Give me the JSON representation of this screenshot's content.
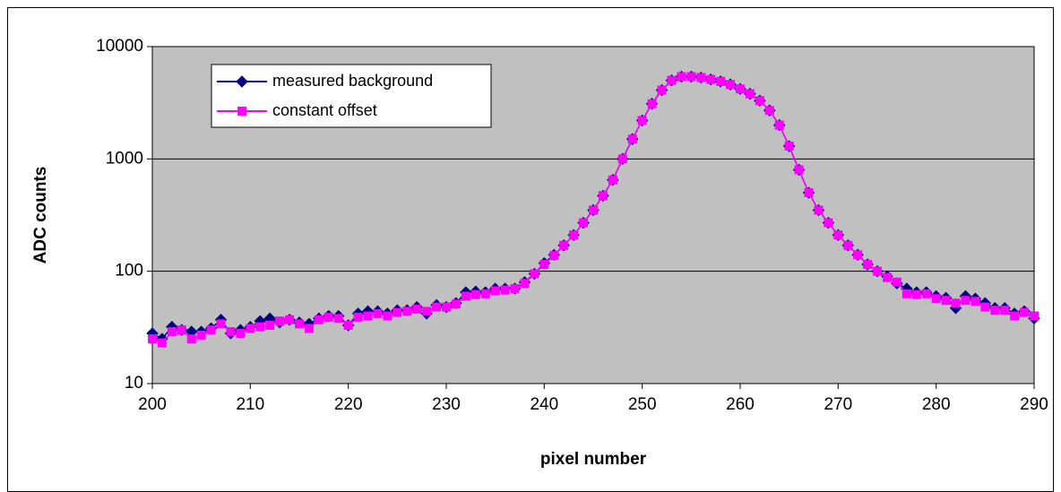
{
  "chart_data": {
    "type": "line",
    "x_label": "pixel number",
    "y_label": "ADC counts",
    "x": [
      200,
      201,
      202,
      203,
      204,
      205,
      206,
      207,
      208,
      209,
      210,
      211,
      212,
      213,
      214,
      215,
      216,
      217,
      218,
      219,
      220,
      221,
      222,
      223,
      224,
      225,
      226,
      227,
      228,
      229,
      230,
      231,
      232,
      233,
      234,
      235,
      236,
      237,
      238,
      239,
      240,
      241,
      242,
      243,
      244,
      245,
      246,
      247,
      248,
      249,
      250,
      251,
      252,
      253,
      254,
      255,
      256,
      257,
      258,
      259,
      260,
      261,
      262,
      263,
      264,
      265,
      266,
      267,
      268,
      269,
      270,
      271,
      272,
      273,
      274,
      275,
      276,
      277,
      278,
      279,
      280,
      281,
      282,
      283,
      284,
      285,
      286,
      287,
      288,
      289,
      290
    ],
    "series": [
      {
        "name": "measured background",
        "color": "#000080",
        "marker": "diamond",
        "values": [
          28,
          25,
          32,
          30,
          29,
          29,
          31,
          37,
          28,
          30,
          32,
          36,
          38,
          35,
          37,
          35,
          34,
          38,
          40,
          40,
          33,
          42,
          44,
          44,
          42,
          45,
          45,
          48,
          42,
          50,
          48,
          52,
          65,
          66,
          65,
          70,
          70,
          70,
          80,
          95,
          118,
          140,
          170,
          210,
          270,
          350,
          470,
          650,
          1000,
          1500,
          2200,
          3100,
          4100,
          5000,
          5400,
          5400,
          5300,
          5100,
          4900,
          4600,
          4200,
          3800,
          3300,
          2700,
          2000,
          1300,
          800,
          500,
          350,
          270,
          210,
          170,
          140,
          115,
          100,
          90,
          78,
          70,
          65,
          65,
          60,
          58,
          47,
          60,
          57,
          52,
          47,
          47,
          42,
          44,
          38
        ]
      },
      {
        "name": "constant offset",
        "color": "#ff00ff",
        "marker": "square",
        "values": [
          25,
          23,
          29,
          30,
          25,
          27,
          30,
          34,
          29,
          28,
          31,
          32,
          33,
          36,
          37,
          34,
          31,
          37,
          39,
          38,
          33,
          39,
          40,
          42,
          40,
          43,
          44,
          46,
          44,
          48,
          48,
          51,
          60,
          62,
          63,
          67,
          68,
          70,
          78,
          95,
          115,
          138,
          170,
          210,
          270,
          350,
          470,
          650,
          1000,
          1500,
          2200,
          3100,
          4100,
          5000,
          5400,
          5400,
          5300,
          5100,
          4900,
          4600,
          4200,
          3800,
          3300,
          2700,
          2000,
          1300,
          800,
          500,
          350,
          270,
          210,
          170,
          140,
          115,
          100,
          88,
          80,
          63,
          62,
          63,
          57,
          55,
          52,
          55,
          54,
          48,
          45,
          45,
          40,
          43,
          40
        ]
      }
    ],
    "xlim": [
      200,
      290
    ],
    "xticks": [
      200,
      210,
      220,
      230,
      240,
      250,
      260,
      270,
      280,
      290
    ],
    "ylim": [
      10,
      10000
    ],
    "yticks": [
      10,
      100,
      1000,
      10000
    ],
    "y_scale": "log",
    "grid": true,
    "legend": "upper left",
    "plot_background": "#c0c0c0"
  }
}
